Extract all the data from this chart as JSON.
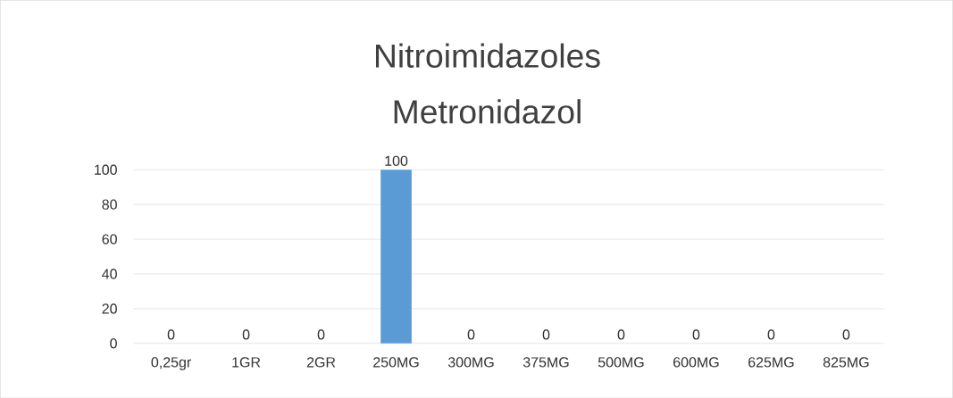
{
  "chart_data": {
    "type": "bar",
    "title": "Nitroimidazoles",
    "subtitle": "Metronidazol",
    "categories": [
      "0,25gr",
      "1GR",
      "2GR",
      "250MG",
      "300MG",
      "375MG",
      "500MG",
      "600MG",
      "625MG",
      "825MG"
    ],
    "values": [
      0,
      0,
      0,
      100,
      0,
      0,
      0,
      0,
      0,
      0
    ],
    "color": "#5b9bd5",
    "ylim": [
      0,
      100
    ],
    "yticks": [
      0,
      20,
      40,
      60,
      80,
      100
    ],
    "grid": "y",
    "data_labels": true
  }
}
